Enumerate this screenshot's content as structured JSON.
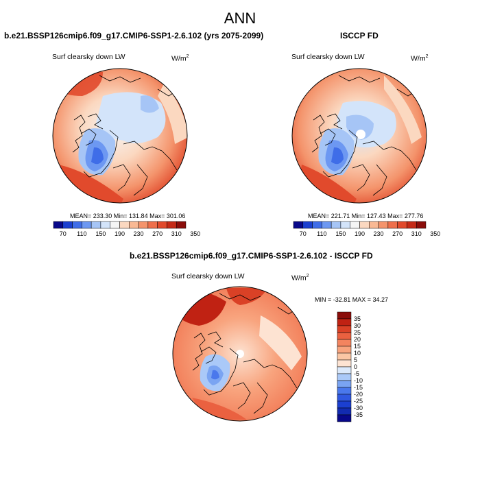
{
  "main_title": "ANN",
  "panels": [
    {
      "title": "b.e21.BSSP126cmip6.f09_g17.CMIP6-SSP1-2.6.102 (yrs 2075-2099)",
      "variable": "Surf clearsky down LW",
      "units": "W/m",
      "units_exp": "2",
      "stats": "MEAN= 233.30   Min= 131.84   Max= 301.06",
      "colorbar_ticks": [
        "70",
        "110",
        "150",
        "190",
        "230",
        "270",
        "310",
        "350"
      ]
    },
    {
      "title": "ISCCP FD",
      "variable": "Surf clearsky down LW",
      "units": "W/m",
      "units_exp": "2",
      "stats": "MEAN= 221.71   Min= 127.43   Max= 277.76",
      "colorbar_ticks": [
        "70",
        "110",
        "150",
        "190",
        "230",
        "270",
        "310",
        "350"
      ]
    },
    {
      "title": "b.e21.BSSP126cmip6.f09_g17.CMIP6-SSP1-2.6.102 - ISCCP FD",
      "variable": "Surf clearsky down LW",
      "units": "W/m",
      "units_exp": "2",
      "stats": "MIN = -32.81 MAX =  34.27",
      "colorbar_ticks": [
        "35",
        "30",
        "25",
        "20",
        "15",
        "10",
        "5",
        "0",
        "-5",
        "-10",
        "-15",
        "-20",
        "-25",
        "-30",
        "-35"
      ]
    }
  ],
  "colors": {
    "abs_scale": [
      "#08088a",
      "#1b3fd0",
      "#3f6de8",
      "#6d98f2",
      "#a6c5f6",
      "#d3e4fa",
      "#f5f5f5",
      "#fbd8c0",
      "#f9b994",
      "#f4946c",
      "#ee6f4b",
      "#e14a2c",
      "#c42a17",
      "#8a0d0a"
    ],
    "diff_scale": [
      "#08088a",
      "#122bb0",
      "#1b3fd0",
      "#3058e0",
      "#4a78ec",
      "#7aa4f2",
      "#aac9f8",
      "#dbe9fb",
      "#fde3d2",
      "#fbc6a4",
      "#f8a47e",
      "#f3845f",
      "#ea6140",
      "#da4126",
      "#c02213",
      "#8a0d0a"
    ]
  }
}
